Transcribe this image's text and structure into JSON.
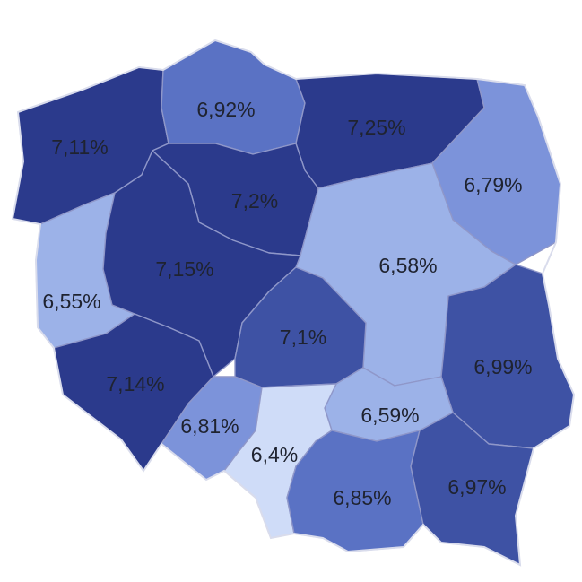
{
  "map": {
    "regions": [
      {
        "id": "zachodniopomorskie",
        "label": "7,11%",
        "value": 7.11,
        "color": "#2b3a8c"
      },
      {
        "id": "pomorskie",
        "label": "6,92%",
        "value": 6.92,
        "color": "#5a72c4"
      },
      {
        "id": "warminsko-mazurskie",
        "label": "7,25%",
        "value": 7.25,
        "color": "#2b3a8c"
      },
      {
        "id": "podlaskie",
        "label": "6,79%",
        "value": 6.79,
        "color": "#7c93da"
      },
      {
        "id": "kujawsko-pomorskie",
        "label": "7,2%",
        "value": 7.2,
        "color": "#2b3a8c"
      },
      {
        "id": "mazowieckie",
        "label": "6,58%",
        "value": 6.58,
        "color": "#9cb2e8"
      },
      {
        "id": "lubuskie",
        "label": "6,55%",
        "value": 6.55,
        "color": "#9cb2e8"
      },
      {
        "id": "wielkopolskie",
        "label": "7,15%",
        "value": 7.15,
        "color": "#2b3a8c"
      },
      {
        "id": "lodzkie",
        "label": "7,1%",
        "value": 7.1,
        "color": "#3e52a4"
      },
      {
        "id": "lubelskie",
        "label": "6,99%",
        "value": 6.99,
        "color": "#3e52a4"
      },
      {
        "id": "dolnoslaskie",
        "label": "7,14%",
        "value": 7.14,
        "color": "#2b3a8c"
      },
      {
        "id": "swietokrzyskie",
        "label": "6,59%",
        "value": 6.59,
        "color": "#9cb2e8"
      },
      {
        "id": "opolskie",
        "label": "6,81%",
        "value": 6.81,
        "color": "#7c93da"
      },
      {
        "id": "slaskie",
        "label": "6,4%",
        "value": 6.4,
        "color": "#cfdcf8"
      },
      {
        "id": "malopolskie",
        "label": "6,85%",
        "value": 6.85,
        "color": "#5a72c4"
      },
      {
        "id": "podkarpackie",
        "label": "6,97%",
        "value": 6.97,
        "color": "#3e52a4"
      }
    ]
  }
}
